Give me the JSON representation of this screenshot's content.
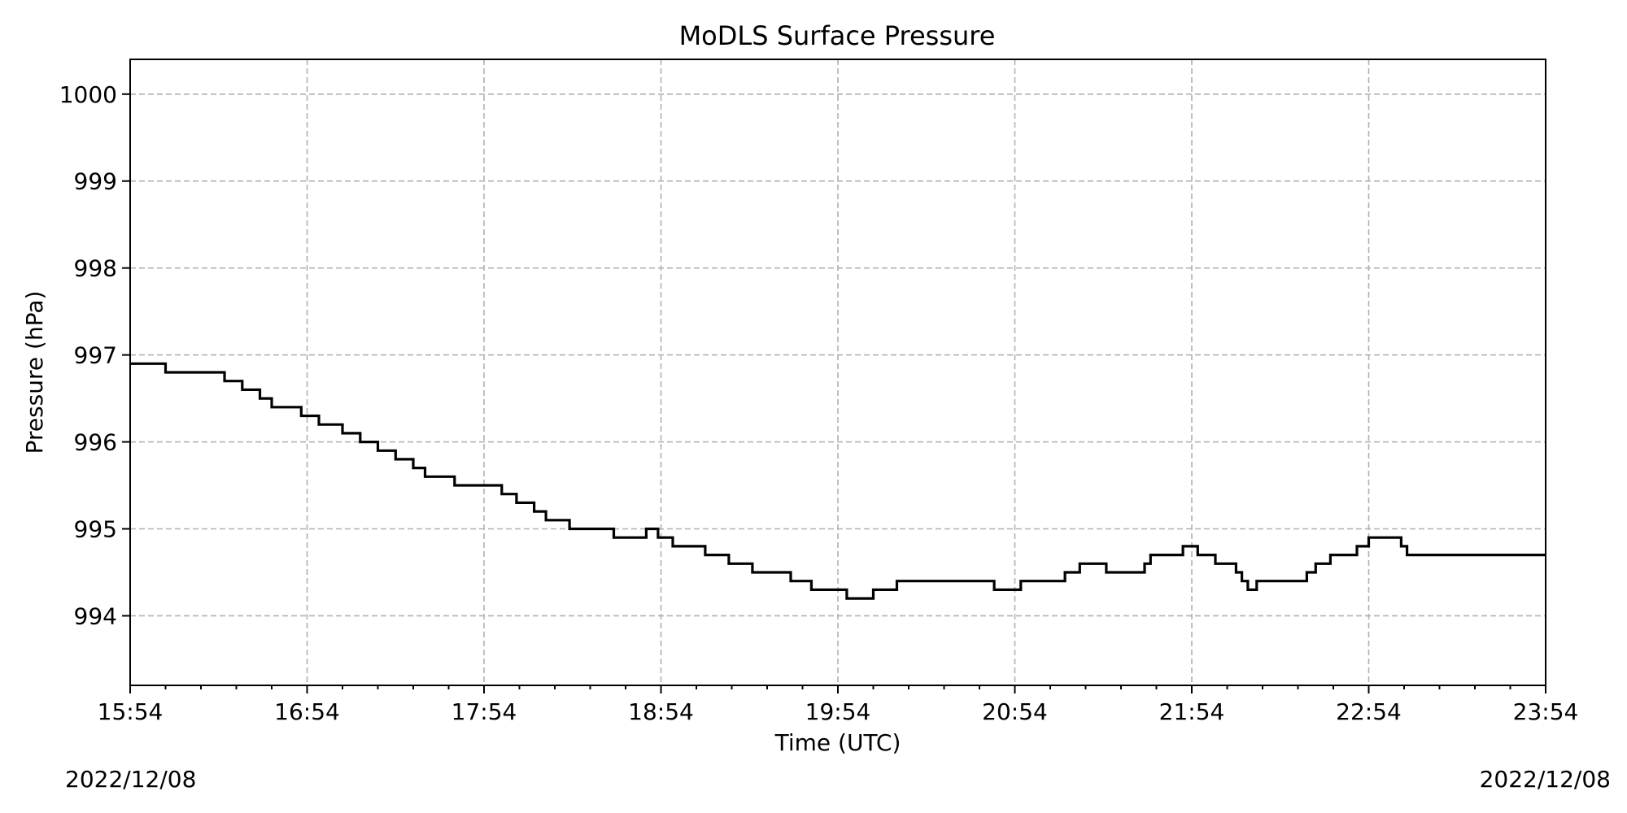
{
  "chart_data": {
    "type": "line",
    "title": "MoDLS Surface Pressure",
    "xlabel": "Time (UTC)",
    "ylabel": "Pressure (hPa)",
    "date_start": "2022/12/08",
    "date_end": "2022/12/08",
    "xlim": [
      "15:54",
      "23:54"
    ],
    "ylim": [
      993.2,
      1000.4
    ],
    "x_ticks": [
      "15:54",
      "16:54",
      "17:54",
      "18:54",
      "19:54",
      "20:54",
      "21:54",
      "22:54",
      "23:54"
    ],
    "y_ticks": [
      994,
      995,
      996,
      997,
      998,
      999,
      1000
    ],
    "grid": true,
    "line_color": "#000000",
    "grid_color": "#b0b0b0",
    "series": [
      {
        "step": true,
        "x": [
          "15:54",
          "16:06",
          "16:12",
          "16:16",
          "16:26",
          "16:32",
          "16:38",
          "16:42",
          "16:46",
          "16:52",
          "16:58",
          "17:04",
          "17:06",
          "17:10",
          "17:12",
          "17:18",
          "17:24",
          "17:30",
          "17:34",
          "17:36",
          "17:40",
          "17:44",
          "17:48",
          "18:00",
          "18:05",
          "18:07",
          "18:11",
          "18:15",
          "18:23",
          "18:29",
          "18:38",
          "18:46",
          "18:49",
          "18:53",
          "18:58",
          "19:09",
          "19:17",
          "19:25",
          "19:30",
          "19:38",
          "19:45",
          "19:53",
          "19:57",
          "20:01",
          "20:06",
          "20:11",
          "20:14",
          "20:18",
          "20:20",
          "20:22",
          "20:33",
          "20:47",
          "20:56",
          "20:59",
          "21:11",
          "21:16",
          "21:21",
          "21:23",
          "21:25",
          "21:38",
          "21:40",
          "21:51",
          "21:56",
          "22:02",
          "22:05",
          "22:09",
          "22:11",
          "22:13",
          "22:16",
          "22:20",
          "22:33",
          "22:36",
          "22:41",
          "22:43",
          "22:50",
          "22:54",
          "23:05",
          "23:07",
          "23:12",
          "23:14",
          "23:17",
          "23:20",
          "23:29",
          "23:32",
          "23:33",
          "23:38",
          "23:42",
          "23:49",
          "23:54"
        ],
        "y": [
          996.9,
          996.8,
          996.8,
          996.8,
          996.7,
          996.6,
          996.5,
          996.4,
          996.4,
          996.3,
          996.2,
          996.2,
          996.1,
          996.1,
          996.0,
          995.9,
          995.8,
          995.7,
          995.6,
          995.6,
          995.6,
          995.5,
          995.5,
          995.4,
          995.3,
          995.3,
          995.2,
          995.1,
          995.0,
          995.0,
          994.9,
          994.9,
          995.0,
          994.9,
          994.8,
          994.7,
          994.6,
          994.5,
          994.5,
          994.4,
          994.3,
          994.3,
          994.2,
          994.2,
          994.3,
          994.3,
          994.4,
          994.4,
          994.4,
          994.4,
          994.4,
          994.3,
          994.4,
          994.4,
          994.5,
          994.6,
          994.6,
          994.6,
          994.5,
          994.6,
          994.7,
          994.8,
          994.7,
          994.6,
          994.6,
          994.5,
          994.4,
          994.3,
          994.4,
          994.4,
          994.5,
          994.6,
          994.7,
          994.7,
          994.8,
          994.9,
          994.8,
          994.7,
          994.7,
          994.7,
          994.7,
          994.7,
          994.7,
          994.7,
          994.7,
          994.7,
          994.7,
          994.7,
          994.7
        ]
      }
    ]
  }
}
